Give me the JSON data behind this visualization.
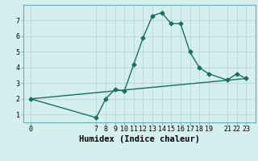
{
  "xlabel": "Humidex (Indice chaleur)",
  "ylabel": "",
  "bg_color": "#d5eeee",
  "grid_color": "#b8d8d8",
  "line_color": "#1a6e62",
  "curve_x": [
    0,
    7,
    8,
    9,
    10,
    11,
    12,
    13,
    14,
    15,
    16,
    17,
    18,
    19,
    21,
    22,
    23
  ],
  "curve_y": [
    2.0,
    0.8,
    2.0,
    2.6,
    2.5,
    4.2,
    5.9,
    7.3,
    7.5,
    6.8,
    6.8,
    5.0,
    4.0,
    3.6,
    3.2,
    3.6,
    3.3
  ],
  "line_x": [
    0,
    23
  ],
  "line_y": [
    2.0,
    3.3
  ],
  "xticks": [
    0,
    7,
    8,
    9,
    10,
    11,
    12,
    13,
    14,
    15,
    16,
    17,
    18,
    19,
    21,
    22,
    23
  ],
  "xtick_labels": [
    "0",
    "7",
    "8",
    "9",
    "10",
    "11",
    "12",
    "13",
    "14",
    "15",
    "16",
    "17",
    "18",
    "19",
    "21",
    "22",
    "23"
  ],
  "yticks": [
    1,
    2,
    3,
    4,
    5,
    6,
    7
  ],
  "xlim": [
    -0.8,
    24.0
  ],
  "ylim": [
    0.5,
    8.0
  ],
  "marker": "D",
  "markersize": 2.5,
  "linewidth": 1.0,
  "fontsize_label": 7.5,
  "fontsize_tick": 6.0
}
